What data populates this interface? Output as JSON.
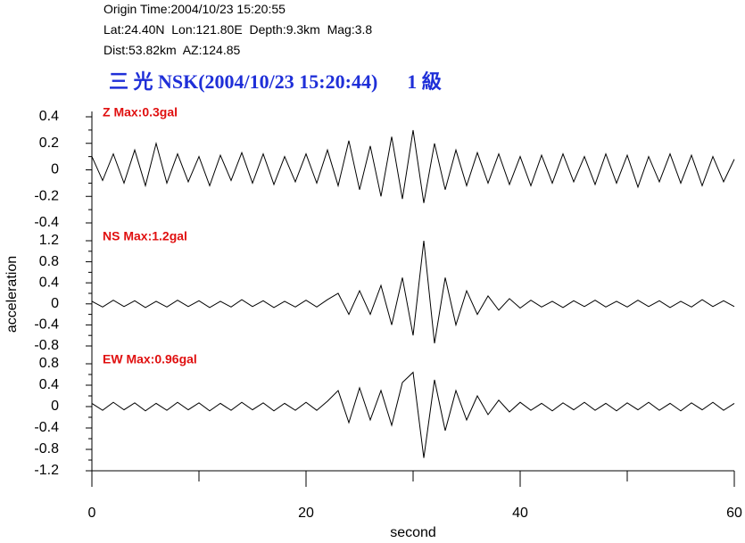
{
  "header": {
    "origin": "Origin Time:2004/10/23 15:20:55",
    "location": "Lat:24.40N  Lon:121.80E  Depth:9.3km  Mag:3.8",
    "distance": "Dist:53.82km  AZ:124.85",
    "station": "三 光 NSK(2004/10/23 15:20:44)      1 級"
  },
  "chart_data": [
    {
      "type": "line",
      "title": "Z Max:0.3gal",
      "color": "#000000",
      "xlim": [
        0,
        60
      ],
      "x": [
        0,
        1,
        2,
        3,
        4,
        5,
        6,
        7,
        8,
        9,
        10,
        11,
        12,
        13,
        14,
        15,
        16,
        17,
        18,
        19,
        20,
        21,
        22,
        23,
        24,
        25,
        26,
        27,
        28,
        29,
        30,
        31,
        32,
        33,
        34,
        35,
        36,
        37,
        38,
        39,
        40,
        41,
        42,
        43,
        44,
        45,
        46,
        47,
        48,
        49,
        50,
        51,
        52,
        53,
        54,
        55,
        56,
        57,
        58,
        59,
        60
      ],
      "values": [
        0.1,
        -0.08,
        0.12,
        -0.1,
        0.15,
        -0.12,
        0.2,
        -0.1,
        0.12,
        -0.09,
        0.1,
        -0.12,
        0.11,
        -0.08,
        0.13,
        -0.1,
        0.12,
        -0.11,
        0.1,
        -0.09,
        0.12,
        -0.1,
        0.15,
        -0.12,
        0.22,
        -0.15,
        0.18,
        -0.2,
        0.25,
        -0.22,
        0.3,
        -0.25,
        0.2,
        -0.15,
        0.15,
        -0.12,
        0.13,
        -0.1,
        0.12,
        -0.11,
        0.1,
        -0.12,
        0.11,
        -0.1,
        0.12,
        -0.09,
        0.1,
        -0.11,
        0.12,
        -0.1,
        0.11,
        -0.13,
        0.1,
        -0.09,
        0.12,
        -0.1,
        0.11,
        -0.12,
        0.1,
        -0.09,
        0.08
      ],
      "ylim": [
        -0.4,
        0.4
      ],
      "yticks": [
        -0.4,
        -0.2,
        0,
        0.2,
        0.4
      ]
    },
    {
      "type": "line",
      "title": "NS Max:1.2gal",
      "color": "#000000",
      "xlim": [
        0,
        60
      ],
      "ylabel": "acceleration",
      "x": [
        0,
        1,
        2,
        3,
        4,
        5,
        6,
        7,
        8,
        9,
        10,
        11,
        12,
        13,
        14,
        15,
        16,
        17,
        18,
        19,
        20,
        21,
        22,
        23,
        24,
        25,
        26,
        27,
        28,
        29,
        30,
        31,
        32,
        33,
        34,
        35,
        36,
        37,
        38,
        39,
        40,
        41,
        42,
        43,
        44,
        45,
        46,
        47,
        48,
        49,
        50,
        51,
        52,
        53,
        54,
        55,
        56,
        57,
        58,
        59,
        60
      ],
      "values": [
        0.05,
        -0.06,
        0.07,
        -0.05,
        0.06,
        -0.07,
        0.05,
        -0.06,
        0.07,
        -0.05,
        0.06,
        -0.07,
        0.05,
        -0.06,
        0.08,
        -0.05,
        0.06,
        -0.07,
        0.05,
        -0.06,
        0.07,
        -0.06,
        0.08,
        0.2,
        -0.2,
        0.25,
        -0.2,
        0.35,
        -0.4,
        0.5,
        -0.6,
        1.2,
        -0.75,
        0.5,
        -0.4,
        0.25,
        -0.2,
        0.15,
        -0.12,
        0.1,
        -0.08,
        0.07,
        -0.06,
        0.05,
        -0.07,
        0.06,
        -0.05,
        0.07,
        -0.06,
        0.05,
        -0.06,
        0.07,
        -0.05,
        0.06,
        -0.07,
        0.05,
        -0.06,
        0.08,
        -0.05,
        0.06,
        -0.05
      ],
      "ylim": [
        -0.8,
        1.2
      ],
      "yticks": [
        -0.8,
        -0.4,
        0,
        0.4,
        0.8,
        1.2
      ]
    },
    {
      "type": "line",
      "title": "EW Max:0.96gal",
      "color": "#000000",
      "xlim": [
        0,
        60
      ],
      "xlabel": "second",
      "xticks": [
        0,
        20,
        40,
        60
      ],
      "xminor_ticks": [
        10,
        30,
        50
      ],
      "x": [
        0,
        1,
        2,
        3,
        4,
        5,
        6,
        7,
        8,
        9,
        10,
        11,
        12,
        13,
        14,
        15,
        16,
        17,
        18,
        19,
        20,
        21,
        22,
        23,
        24,
        25,
        26,
        27,
        28,
        29,
        30,
        31,
        32,
        33,
        34,
        35,
        36,
        37,
        38,
        39,
        40,
        41,
        42,
        43,
        44,
        45,
        46,
        47,
        48,
        49,
        50,
        51,
        52,
        53,
        54,
        55,
        56,
        57,
        58,
        59,
        60
      ],
      "values": [
        0.06,
        -0.07,
        0.08,
        -0.06,
        0.07,
        -0.08,
        0.06,
        -0.07,
        0.08,
        -0.06,
        0.07,
        -0.08,
        0.06,
        -0.07,
        0.08,
        -0.06,
        0.07,
        -0.08,
        0.06,
        -0.07,
        0.08,
        -0.07,
        0.1,
        0.3,
        -0.3,
        0.35,
        -0.25,
        0.3,
        -0.35,
        0.45,
        0.64,
        -0.96,
        0.5,
        -0.45,
        0.3,
        -0.25,
        0.2,
        -0.15,
        0.12,
        -0.1,
        0.08,
        -0.07,
        0.06,
        -0.08,
        0.07,
        -0.06,
        0.08,
        -0.07,
        0.06,
        -0.08,
        0.07,
        -0.06,
        0.08,
        -0.07,
        0.06,
        -0.08,
        0.07,
        -0.06,
        0.08,
        -0.07,
        0.06
      ],
      "ylim": [
        -1.2,
        0.8
      ],
      "yticks": [
        -1.2,
        -0.8,
        -0.4,
        0,
        0.4,
        0.8
      ]
    }
  ]
}
